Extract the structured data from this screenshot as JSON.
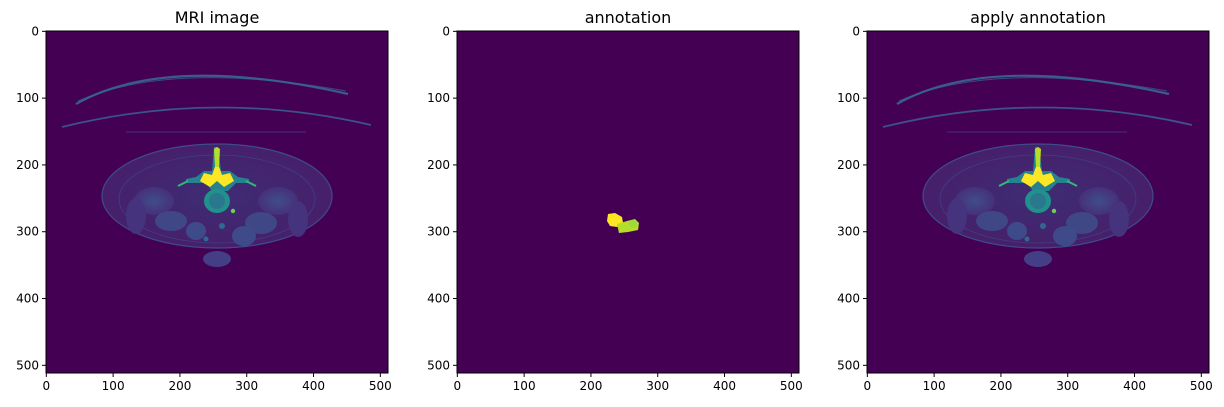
{
  "figure": {
    "panels": [
      {
        "title": "MRI image",
        "content": "mri-slice"
      },
      {
        "title": "annotation",
        "content": "label-mask"
      },
      {
        "title": "apply annotation",
        "content": "mri-slice"
      }
    ],
    "x_ticks": [
      "0",
      "100",
      "200",
      "300",
      "400",
      "500"
    ],
    "y_ticks": [
      "0",
      "100",
      "200",
      "300",
      "400",
      "500"
    ]
  },
  "colors": {
    "background": "#440154",
    "mask_yellow": "#fde725",
    "mask_green": "#b5de2b",
    "frame": "#000000"
  }
}
